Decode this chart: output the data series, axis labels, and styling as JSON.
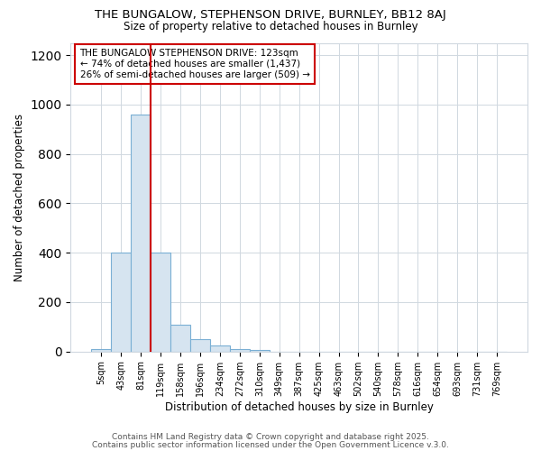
{
  "title1": "THE BUNGALOW, STEPHENSON DRIVE, BURNLEY, BB12 8AJ",
  "title2": "Size of property relative to detached houses in Burnley",
  "xlabel": "Distribution of detached houses by size in Burnley",
  "ylabel": "Number of detached properties",
  "bar_labels": [
    "5sqm",
    "43sqm",
    "81sqm",
    "119sqm",
    "158sqm",
    "196sqm",
    "234sqm",
    "272sqm",
    "310sqm",
    "349sqm",
    "387sqm",
    "425sqm",
    "463sqm",
    "502sqm",
    "540sqm",
    "578sqm",
    "616sqm",
    "654sqm",
    "693sqm",
    "731sqm",
    "769sqm"
  ],
  "bar_values": [
    10,
    400,
    960,
    400,
    110,
    50,
    25,
    10,
    5,
    0,
    0,
    0,
    0,
    0,
    0,
    0,
    0,
    0,
    0,
    0,
    0
  ],
  "bar_color": "#d6e4f0",
  "bar_edge_color": "#7aafd4",
  "property_line_x": 2.5,
  "property_line_color": "#cc0000",
  "annotation_text": "THE BUNGALOW STEPHENSON DRIVE: 123sqm\n← 74% of detached houses are smaller (1,437)\n26% of semi-detached houses are larger (509) →",
  "annotation_box_facecolor": "#ffffff",
  "annotation_border_color": "#cc0000",
  "ylim": [
    0,
    1250
  ],
  "yticks": [
    0,
    200,
    400,
    600,
    800,
    1000,
    1200
  ],
  "bg_color": "#ffffff",
  "grid_color": "#d0d8e0",
  "footer_text1": "Contains HM Land Registry data © Crown copyright and database right 2025.",
  "footer_text2": "Contains public sector information licensed under the Open Government Licence v.3.0."
}
